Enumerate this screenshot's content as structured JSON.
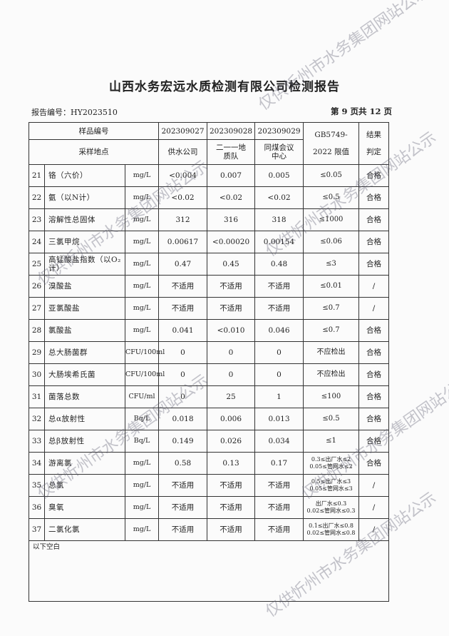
{
  "title": "山西水务宏远水质检测有限公司检测报告",
  "report_no": "报告编号：HY2023510",
  "page_info": "第 9 页共 12 页",
  "header": {
    "sample_no_label": "样品编号",
    "samples": [
      "202309027",
      "202309028",
      "202309029"
    ],
    "site_label": "采样地点",
    "sites": [
      "供水公司",
      "二一一地质队",
      "同煤会议中心"
    ],
    "std_label_1": "GB5749-",
    "std_label_2": "2022 限值",
    "result_label_1": "结果",
    "result_label_2": "判定"
  },
  "rows": [
    {
      "no": "21",
      "name": "铬（六价）",
      "unit": "mg/L",
      "v": [
        "<0.004",
        "0.007",
        "0.005"
      ],
      "std": "≤0.05",
      "res": "合格"
    },
    {
      "no": "22",
      "name": "氨（以N计）",
      "unit": "mg/L",
      "v": [
        "<0.02",
        "<0.02",
        "<0.02"
      ],
      "std": "≤0.5",
      "res": "合格"
    },
    {
      "no": "23",
      "name": "溶解性总固体",
      "unit": "mg/L",
      "v": [
        "312",
        "316",
        "318"
      ],
      "std": "≤1000",
      "res": "合格"
    },
    {
      "no": "24",
      "name": "三氯甲烷",
      "unit": "mg/L",
      "v": [
        "0.00617",
        "<0.00020",
        "0.00154"
      ],
      "std": "≤0.06",
      "res": "合格"
    },
    {
      "no": "25",
      "name": "高锰酸盐指数（以O₂计）",
      "unit": "mg/L",
      "v": [
        "0.47",
        "0.45",
        "0.48"
      ],
      "std": "≤3",
      "res": "合格"
    },
    {
      "no": "26",
      "name": "溴酸盐",
      "unit": "mg/L",
      "v": [
        "不适用",
        "不适用",
        "不适用"
      ],
      "std": "≤0.01",
      "res": "/"
    },
    {
      "no": "27",
      "name": "亚氯酸盐",
      "unit": "mg/L",
      "v": [
        "不适用",
        "不适用",
        "不适用"
      ],
      "std": "≤0.7",
      "res": "/"
    },
    {
      "no": "28",
      "name": "氯酸盐",
      "unit": "mg/L",
      "v": [
        "0.041",
        "<0.010",
        "0.046"
      ],
      "std": "≤0.7",
      "res": "合格"
    },
    {
      "no": "29",
      "name": "总大肠菌群",
      "unit": "CFU/100ml",
      "v": [
        "0",
        "0",
        "0"
      ],
      "std": "不应检出",
      "res": "合格"
    },
    {
      "no": "30",
      "name": "大肠埃希氏菌",
      "unit": "CFU/100ml",
      "v": [
        "0",
        "0",
        "0"
      ],
      "std": "不应检出",
      "res": "合格"
    },
    {
      "no": "31",
      "name": "菌落总数",
      "unit": "CFU/ml",
      "v": [
        "0",
        "25",
        "1"
      ],
      "std": "≤100",
      "res": "合格"
    },
    {
      "no": "32",
      "name": "总α放射性",
      "unit": "Bq/L",
      "v": [
        "0.018",
        "0.006",
        "0.013"
      ],
      "std": "≤0.5",
      "res": "合格"
    },
    {
      "no": "33",
      "name": "总β放射性",
      "unit": "Bq/L",
      "v": [
        "0.149",
        "0.026",
        "0.034"
      ],
      "std": "≤1",
      "res": "合格"
    },
    {
      "no": "34",
      "name": "游离氯",
      "unit": "mg/L",
      "v": [
        "0.58",
        "0.13",
        "0.17"
      ],
      "std": "0.3≤出厂水≤2",
      "std2": "0.05≤管网水≤2",
      "res": "合格"
    },
    {
      "no": "35",
      "name": "总氯",
      "unit": "mg/L",
      "v": [
        "不适用",
        "不适用",
        "不适用"
      ],
      "std": "0.5≤出厂水≤3",
      "std2": "0.05≤管网水≤3",
      "res": "/"
    },
    {
      "no": "36",
      "name": "臭氧",
      "unit": "mg/L",
      "v": [
        "不适用",
        "不适用",
        "不适用"
      ],
      "std": "出厂水≤0.3",
      "std2": "0.02≤管网水≤0.3",
      "res": "/"
    },
    {
      "no": "37",
      "name": "二氯化氯",
      "unit": "mg/L",
      "v": [
        "不适用",
        "不适用",
        "不适用"
      ],
      "std": "0.1≤出厂水≤0.8",
      "std2": "0.02≤管网水≤0.8",
      "res": "/"
    }
  ],
  "footer_note": "以下空白",
  "watermark": "仅供忻州市水务集团网站公示"
}
